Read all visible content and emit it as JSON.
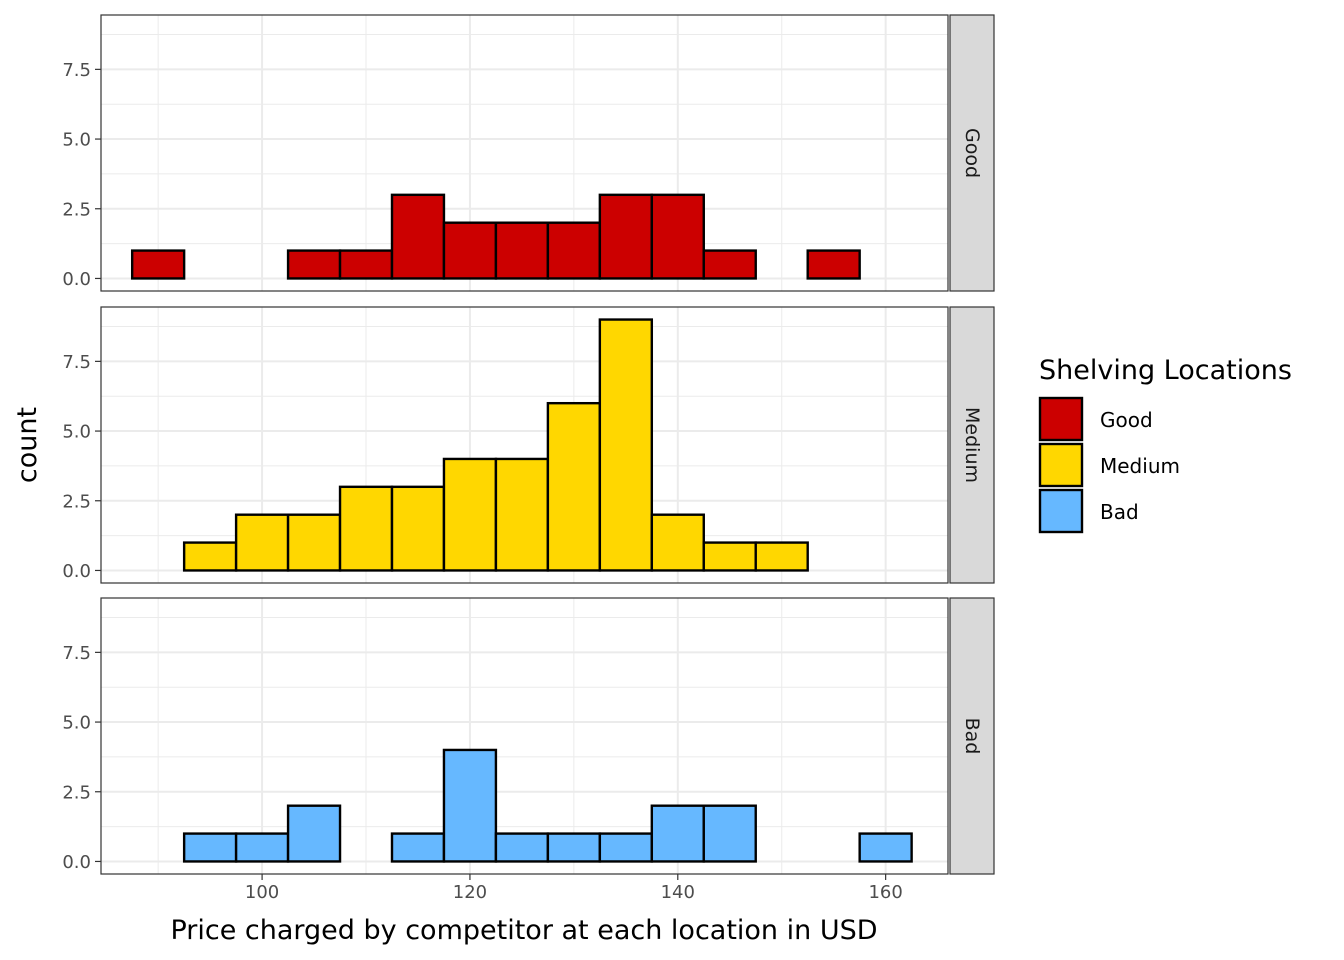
{
  "chart_data": {
    "type": "bar",
    "subtype": "faceted-histogram",
    "xlabel": "Price charged by competitor at each location in USD",
    "ylabel": "count",
    "bin_width": 5,
    "bin_starts": [
      87.5,
      92.5,
      97.5,
      102.5,
      107.5,
      112.5,
      117.5,
      122.5,
      127.5,
      132.5,
      137.5,
      142.5,
      147.5,
      152.5,
      157.5
    ],
    "xlim": [
      84.5,
      166
    ],
    "ylim": [
      -0.45,
      9.45
    ],
    "x_ticks": [
      100,
      120,
      140,
      160
    ],
    "x_tick_labels": [
      "100",
      "120",
      "140",
      "160"
    ],
    "y_ticks": [
      0,
      2.5,
      5,
      7.5
    ],
    "y_tick_labels": [
      "0.0",
      "2.5",
      "5.0",
      "7.5"
    ],
    "grid": true,
    "facet_position": "right",
    "series": [
      {
        "name": "Good",
        "color": "#CC0000",
        "counts": [
          1,
          0,
          0,
          1,
          1,
          3,
          2,
          2,
          2,
          3,
          3,
          1,
          0,
          1,
          0
        ]
      },
      {
        "name": "Medium",
        "color": "#FFD700",
        "counts": [
          0,
          1,
          2,
          2,
          3,
          3,
          4,
          4,
          6,
          9,
          2,
          1,
          1,
          0,
          0
        ]
      },
      {
        "name": "Bad",
        "color": "#66B8FF",
        "counts": [
          0,
          1,
          1,
          2,
          0,
          1,
          4,
          1,
          1,
          1,
          2,
          2,
          0,
          0,
          1
        ]
      }
    ],
    "legend": {
      "title": "Shelving Locations",
      "position": "right",
      "items": [
        "Good",
        "Medium",
        "Bad"
      ]
    }
  }
}
